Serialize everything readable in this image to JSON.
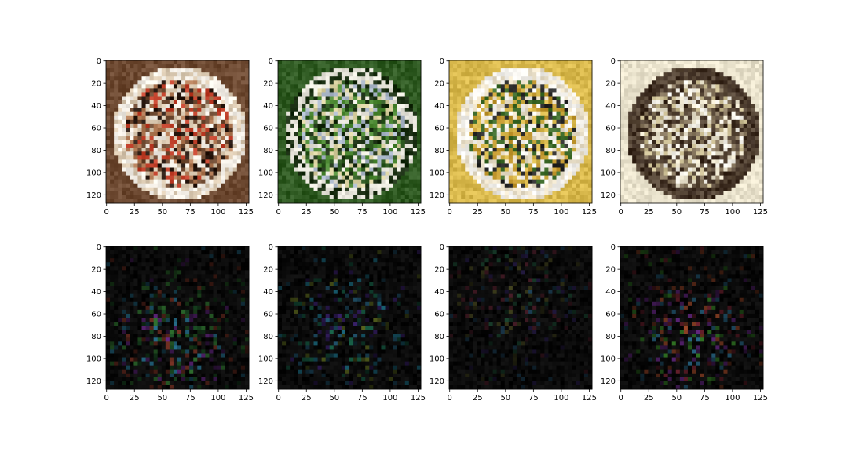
{
  "figure": {
    "background": "#ffffff",
    "axes_color": "#000000"
  },
  "chart_data": [
    {
      "type": "heatmap",
      "content": "food photo - quesadilla wedges on wooden board with dip cups",
      "palette": [
        "#6e4a32",
        "#b07a55",
        "#d9c8b0",
        "#f2ede5",
        "#c0402a",
        "#2a1a12"
      ],
      "x_ticks": [
        0,
        25,
        50,
        75,
        100,
        125
      ],
      "y_ticks": [
        0,
        20,
        40,
        60,
        80,
        100,
        120
      ],
      "xlim": [
        -0.5,
        127.5
      ],
      "ylim": [
        127.5,
        -0.5
      ]
    },
    {
      "type": "heatmap",
      "content": "food photo - green salad with grated cheese on white plate",
      "palette": [
        "#2f5a22",
        "#4e8a35",
        "#1a2e12",
        "#e8e6dc",
        "#a9b6c8",
        "#d8d0a0"
      ],
      "x_ticks": [
        0,
        25,
        50,
        75,
        100,
        125
      ],
      "y_ticks": [
        0,
        20,
        40,
        60,
        80,
        100,
        120
      ],
      "xlim": [
        -0.5,
        127.5
      ],
      "ylim": [
        127.5,
        -0.5
      ]
    },
    {
      "type": "heatmap",
      "content": "food photo - folded omelette with herbs on white plate",
      "palette": [
        "#d8b84c",
        "#c49a32",
        "#e9dfc8",
        "#f5f3ee",
        "#3d6a2a",
        "#2a2a2a"
      ],
      "x_ticks": [
        0,
        25,
        50,
        75,
        100,
        125
      ],
      "y_ticks": [
        0,
        20,
        40,
        60,
        80,
        100,
        120
      ],
      "xlim": [
        -0.5,
        127.5
      ],
      "ylim": [
        127.5,
        -0.5
      ]
    },
    {
      "type": "heatmap",
      "content": "food photo - clam chowder in white bowl with spoon",
      "palette": [
        "#e9e2cc",
        "#c9bc92",
        "#5a4a3a",
        "#3a2a1e",
        "#f4f1e8",
        "#8a7a62"
      ],
      "x_ticks": [
        0,
        25,
        50,
        75,
        100,
        125
      ],
      "y_ticks": [
        0,
        20,
        40,
        60,
        80,
        100,
        120
      ],
      "xlim": [
        -0.5,
        127.5
      ],
      "ylim": [
        127.5,
        -0.5
      ]
    },
    {
      "type": "heatmap",
      "content": "saliency map - sparse colored noise on black, concentrated lower-middle",
      "palette": [
        "#000000",
        "#1f5a2a",
        "#2a7a9a",
        "#6a2a8a",
        "#3a8a3a",
        "#8a3a2a"
      ],
      "focus": [
        0.45,
        0.65
      ],
      "intensity": 0.55,
      "x_ticks": [
        0,
        25,
        50,
        75,
        100,
        125
      ],
      "y_ticks": [
        0,
        20,
        40,
        60,
        80,
        100,
        120
      ],
      "xlim": [
        -0.5,
        127.5
      ],
      "ylim": [
        127.5,
        -0.5
      ]
    },
    {
      "type": "heatmap",
      "content": "saliency map - sparse colored noise on black, concentrated center",
      "palette": [
        "#000000",
        "#2a6a8a",
        "#1f7a5a",
        "#4a2a8a",
        "#7a8a2a",
        "#2aa0c0"
      ],
      "focus": [
        0.45,
        0.55
      ],
      "intensity": 0.4,
      "x_ticks": [
        0,
        25,
        50,
        75,
        100,
        125
      ],
      "y_ticks": [
        0,
        20,
        40,
        60,
        80,
        100,
        120
      ],
      "xlim": [
        -0.5,
        127.5
      ],
      "ylim": [
        127.5,
        -0.5
      ]
    },
    {
      "type": "heatmap",
      "content": "saliency map - faint colored noise on black, diagonal band",
      "palette": [
        "#000000",
        "#3a2a6a",
        "#2a6a4a",
        "#6a2a3a",
        "#2a5a7a",
        "#5a5a2a"
      ],
      "focus": [
        0.45,
        0.35
      ],
      "intensity": 0.3,
      "x_ticks": [
        0,
        25,
        50,
        75,
        100,
        125
      ],
      "y_ticks": [
        0,
        20,
        40,
        60,
        80,
        100,
        120
      ],
      "xlim": [
        -0.5,
        127.5
      ],
      "ylim": [
        127.5,
        -0.5
      ]
    },
    {
      "type": "heatmap",
      "content": "saliency map - colored noise on black, concentrated lower-center",
      "palette": [
        "#000000",
        "#8a2a3a",
        "#2a6a8a",
        "#3a8a2a",
        "#6a2a8a",
        "#a04a2a"
      ],
      "focus": [
        0.5,
        0.62
      ],
      "intensity": 0.5,
      "x_ticks": [
        0,
        25,
        50,
        75,
        100,
        125
      ],
      "y_ticks": [
        0,
        20,
        40,
        60,
        80,
        100,
        120
      ],
      "xlim": [
        -0.5,
        127.5
      ],
      "ylim": [
        127.5,
        -0.5
      ]
    }
  ]
}
